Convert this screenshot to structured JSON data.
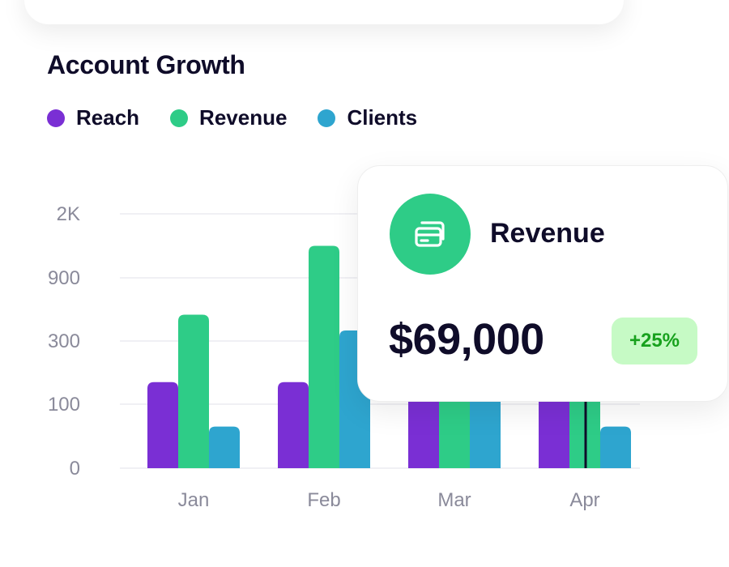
{
  "title": "Account Growth",
  "legend": [
    {
      "label": "Reach",
      "color": "#7a2fd4"
    },
    {
      "label": "Revenue",
      "color": "#2ecc87"
    },
    {
      "label": "Clients",
      "color": "#2ea5cf"
    }
  ],
  "card": {
    "title": "Revenue",
    "value": "$69,000",
    "badge": "+25%",
    "icon": "cards-icon"
  },
  "chart_data": {
    "type": "bar",
    "categories": [
      "Jan",
      "Feb",
      "Mar",
      "Apr"
    ],
    "y_ticks": [
      "0",
      "100",
      "300",
      "900",
      "2K"
    ],
    "y_tick_values": [
      0,
      100,
      300,
      900,
      2000
    ],
    "series": [
      {
        "name": "Reach",
        "color": "#7a2fd4",
        "values": [
          170,
          170,
          170,
          170
        ]
      },
      {
        "name": "Revenue",
        "color": "#2ecc87",
        "values": [
          550,
          1450,
          170,
          170
        ]
      },
      {
        "name": "Clients",
        "color": "#2ea5cf",
        "values": [
          65,
          400,
          170,
          65
        ]
      }
    ],
    "grid": true,
    "legend_position": "top-left"
  }
}
